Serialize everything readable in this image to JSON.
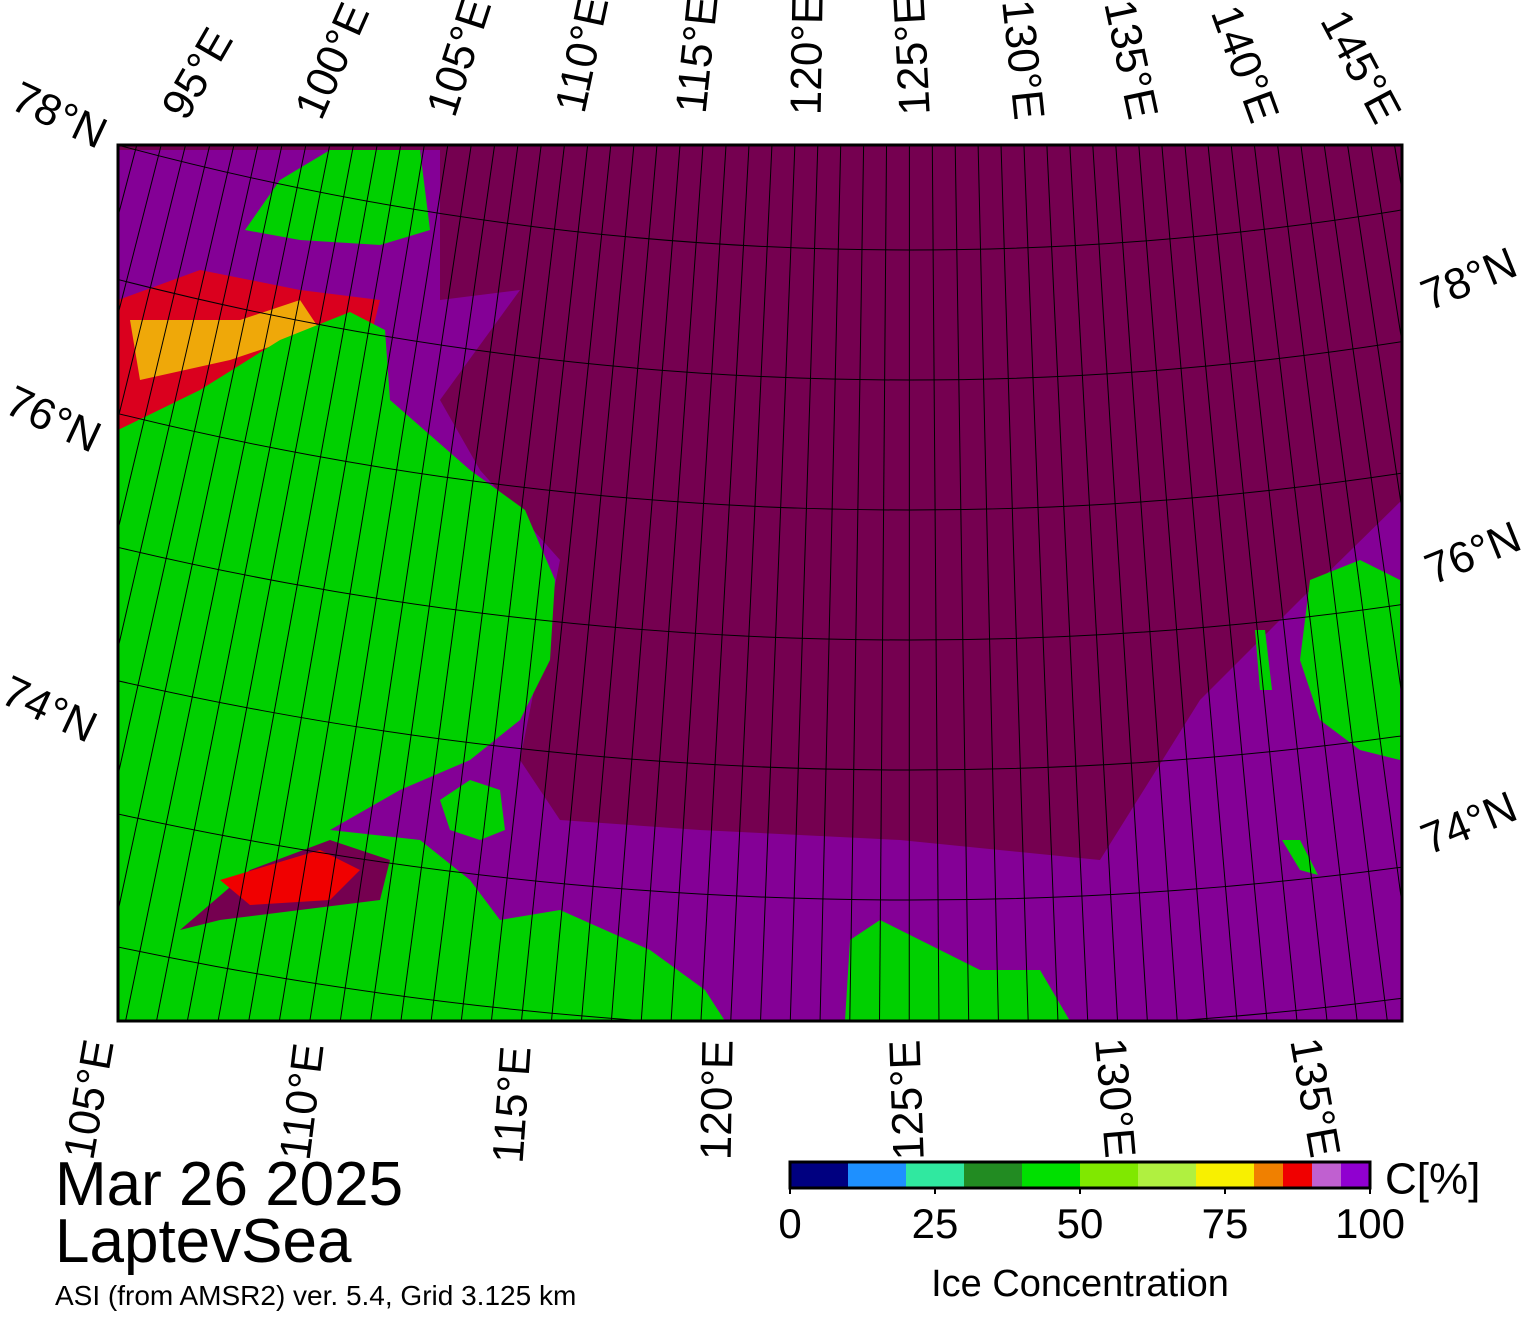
{
  "map": {
    "date": "Mar 26 2025",
    "region": "LaptevSea",
    "source": "ASI (from AMSR2) ver. 5.4,  Grid 3.125 km",
    "top_labels": [
      "95°E",
      "100°E",
      "105°E",
      "110°E",
      "115°E",
      "120°E",
      "125°E",
      "130°E",
      "135°E",
      "140°E",
      "145°E"
    ],
    "left_labels": [
      "78°N",
      "76°N",
      "74°N"
    ],
    "right_labels": [
      "78°N",
      "76°N",
      "74°N"
    ],
    "bottom_labels": [
      "105°E",
      "110°E",
      "115°E",
      "120°E",
      "125°E",
      "130°E",
      "135°E"
    ]
  },
  "colorbar": {
    "unit_label": "C[%]",
    "title": "Ice Concentration",
    "bounds": [
      0,
      10,
      20,
      30,
      40,
      50,
      60,
      70,
      80,
      85,
      90,
      95,
      100
    ],
    "colors": [
      "#000080",
      "#1e90ff",
      "#30e8a0",
      "#228b22",
      "#00e000",
      "#80e800",
      "#b0f040",
      "#f8f000",
      "#f08000",
      "#f00000",
      "#c060d0",
      "#9000d0"
    ],
    "ticks": [
      0,
      25,
      50,
      75,
      100
    ],
    "lim": [
      0,
      100
    ]
  }
}
